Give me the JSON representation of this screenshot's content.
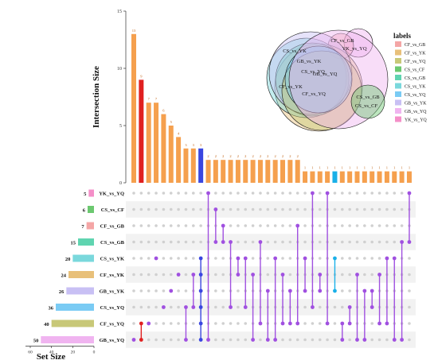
{
  "chart_data": [
    {
      "type": "upset",
      "ylabel": "Intersection Size",
      "xlabel": "Set Size",
      "y_ticks": [
        0,
        5,
        10,
        15
      ],
      "ylim": [
        0,
        15
      ],
      "set_size_ticks": [
        60,
        40,
        20,
        0
      ],
      "set_size_xlim": [
        60,
        0
      ],
      "sets": [
        {
          "name": "YK_vs_YQ",
          "size": 5,
          "color": "#f48fc8"
        },
        {
          "name": "CS_vs_CF",
          "size": 6,
          "color": "#6cc870"
        },
        {
          "name": "CF_vs_GB",
          "size": 7,
          "color": "#f4a6a6"
        },
        {
          "name": "CS_vs_GB",
          "size": 15,
          "color": "#5fd4b0"
        },
        {
          "name": "CS_vs_YK",
          "size": 20,
          "color": "#7ad8dc"
        },
        {
          "name": "CF_vs_YK",
          "size": 24,
          "color": "#e8c07a"
        },
        {
          "name": "GB_vs_YK",
          "size": 26,
          "color": "#c8c0f4"
        },
        {
          "name": "CS_vs_YQ",
          "size": 36,
          "color": "#7acbf4"
        },
        {
          "name": "CF_vs_YQ",
          "size": 40,
          "color": "#c8c878"
        },
        {
          "name": "GB_vs_YQ",
          "size": 50,
          "color": "#f0b4f0"
        }
      ],
      "intersections": [
        {
          "value": 13,
          "members": [
            9
          ],
          "color": "#f5a04e"
        },
        {
          "value": 9,
          "members": [
            8,
            9
          ],
          "color": "#e02020"
        },
        {
          "value": 7,
          "members": [
            8
          ],
          "color": "#f5a04e"
        },
        {
          "value": 7,
          "members": [
            4
          ],
          "color": "#f5a04e"
        },
        {
          "value": 6,
          "members": [
            7
          ],
          "color": "#f5a04e"
        },
        {
          "value": 5,
          "members": [
            6
          ],
          "color": "#f5a04e"
        },
        {
          "value": 4,
          "members": [
            5
          ],
          "color": "#f5a04e"
        },
        {
          "value": 3,
          "members": [
            7,
            9
          ],
          "color": "#f5a04e"
        },
        {
          "value": 3,
          "members": [
            5,
            7
          ],
          "color": "#f5a04e"
        },
        {
          "value": 3,
          "members": [
            4,
            5,
            6,
            7,
            8,
            9
          ],
          "color": "#3a46e0"
        },
        {
          "value": 2,
          "members": [
            0,
            9
          ],
          "color": "#f5a04e"
        },
        {
          "value": 2,
          "members": [
            1,
            3
          ],
          "color": "#f5a04e"
        },
        {
          "value": 2,
          "members": [
            2,
            3
          ],
          "color": "#f5a04e"
        },
        {
          "value": 2,
          "members": [
            3,
            7
          ],
          "color": "#f5a04e"
        },
        {
          "value": 2,
          "members": [
            4,
            5
          ],
          "color": "#f5a04e"
        },
        {
          "value": 2,
          "members": [
            4,
            7
          ],
          "color": "#f5a04e"
        },
        {
          "value": 2,
          "members": [
            5,
            9
          ],
          "color": "#f5a04e"
        },
        {
          "value": 2,
          "members": [
            3,
            8
          ],
          "color": "#f5a04e"
        },
        {
          "value": 2,
          "members": [
            6,
            9
          ],
          "color": "#f5a04e"
        },
        {
          "value": 2,
          "members": [
            4,
            9
          ],
          "color": "#f5a04e"
        },
        {
          "value": 2,
          "members": [
            5,
            8
          ],
          "color": "#f5a04e"
        },
        {
          "value": 2,
          "members": [
            6,
            8
          ],
          "color": "#f5a04e"
        },
        {
          "value": 2,
          "members": [
            2,
            8
          ],
          "color": "#f5a04e"
        },
        {
          "value": 1,
          "members": [
            4,
            6
          ],
          "color": "#f5a04e"
        },
        {
          "value": 1,
          "members": [
            0,
            7
          ],
          "color": "#f5a04e"
        },
        {
          "value": 1,
          "members": [
            5,
            6
          ],
          "color": "#f5a04e"
        },
        {
          "value": 1,
          "members": [
            0,
            8
          ],
          "color": "#f5a04e"
        },
        {
          "value": 1,
          "members": [
            4,
            6
          ],
          "color": "#1ab0e8"
        },
        {
          "value": 1,
          "members": [
            8,
            9
          ],
          "color": "#f5a04e"
        },
        {
          "value": 1,
          "members": [
            7,
            8
          ],
          "color": "#f5a04e"
        },
        {
          "value": 1,
          "members": [
            5,
            9
          ],
          "color": "#f5a04e"
        },
        {
          "value": 1,
          "members": [
            6,
            9
          ],
          "color": "#f5a04e"
        },
        {
          "value": 1,
          "members": [
            6,
            7
          ],
          "color": "#f5a04e"
        },
        {
          "value": 1,
          "members": [
            5,
            8
          ],
          "color": "#f5a04e"
        },
        {
          "value": 1,
          "members": [
            4,
            8
          ],
          "color": "#f5a04e"
        },
        {
          "value": 1,
          "members": [
            4,
            9
          ],
          "color": "#f5a04e"
        },
        {
          "value": 1,
          "members": [
            3,
            9
          ],
          "color": "#f5a04e"
        },
        {
          "value": 1,
          "members": [
            0,
            3
          ],
          "color": "#f5a04e"
        }
      ],
      "dot_color": "#a050e0",
      "empty_dot_color": "#d0d0d0"
    },
    {
      "type": "venn",
      "legend_title": "labels",
      "legend_placement": "right",
      "legend_items": [
        "CF_vs_GB",
        "CF_vs_YK",
        "CF_vs_YQ",
        "CS_vs_CF",
        "CS_vs_GB",
        "CS_vs_YK",
        "CS_vs_YQ",
        "GB_vs_YK",
        "GB_vs_YQ",
        "YK_vs_YQ"
      ],
      "legend_colors": [
        "#f4a6a6",
        "#e8c07a",
        "#c8c878",
        "#6cc870",
        "#5fd4b0",
        "#7ad8dc",
        "#7acbf4",
        "#c8c0f4",
        "#f0b4f0",
        "#f48fc8"
      ],
      "circle_labels": [
        "CF_vs_GB",
        "YK_vs_YQ",
        "CS_vs_YK",
        "GB_vs_YK",
        "CS_vs_YQ",
        "CF_vs_YK",
        "GB_vs_YQ",
        "CF_vs_YQ",
        "CS_vs_GB",
        "CS_vs_CF"
      ]
    }
  ]
}
